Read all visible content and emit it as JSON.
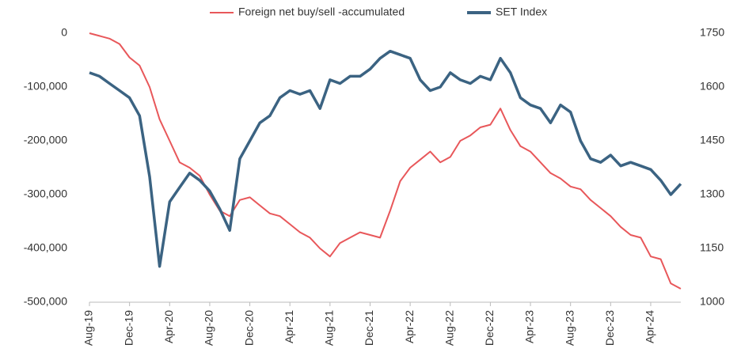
{
  "chart_data": {
    "type": "line",
    "categories": [
      "Aug-19",
      null,
      null,
      null,
      "Dec-19",
      null,
      null,
      null,
      "Apr-20",
      null,
      null,
      null,
      "Aug-20",
      null,
      null,
      null,
      "Dec-20",
      null,
      null,
      null,
      "Apr-21",
      null,
      null,
      null,
      "Aug-21",
      null,
      null,
      null,
      "Dec-21",
      null,
      null,
      null,
      "Apr-22",
      null,
      null,
      null,
      "Aug-22",
      null,
      null,
      null,
      "Dec-22",
      null,
      null,
      null,
      "Apr-23",
      null,
      null,
      null,
      "Aug-23",
      null,
      null,
      null,
      "Dec-23",
      null,
      null,
      null,
      "Apr-24",
      null,
      null,
      null
    ],
    "series": [
      {
        "name": "Foreign net buy/sell -accumulated",
        "color": "#e8575a",
        "axis": "y",
        "values": [
          0,
          -5000,
          -10000,
          -20000,
          -45000,
          -60000,
          -100000,
          -160000,
          -200000,
          -240000,
          -250000,
          -265000,
          -300000,
          -330000,
          -340000,
          -310000,
          -305000,
          -320000,
          -335000,
          -340000,
          -355000,
          -370000,
          -380000,
          -400000,
          -415000,
          -390000,
          -380000,
          -370000,
          -375000,
          -380000,
          -330000,
          -275000,
          -250000,
          -235000,
          -220000,
          -240000,
          -230000,
          -200000,
          -190000,
          -175000,
          -170000,
          -140000,
          -180000,
          -210000,
          -220000,
          -240000,
          -260000,
          -270000,
          -285000,
          -290000,
          -310000,
          -325000,
          -340000,
          -360000,
          -375000,
          -380000,
          -415000,
          -420000,
          -465000,
          -475000
        ]
      },
      {
        "name": "SET Index",
        "color": "#3b6382",
        "axis": "y2",
        "values": [
          1640,
          1630,
          1610,
          1590,
          1570,
          1520,
          1350,
          1100,
          1280,
          1320,
          1360,
          1340,
          1310,
          1260,
          1200,
          1400,
          1450,
          1500,
          1520,
          1570,
          1590,
          1580,
          1590,
          1540,
          1620,
          1610,
          1630,
          1630,
          1650,
          1680,
          1700,
          1690,
          1680,
          1620,
          1590,
          1600,
          1640,
          1620,
          1610,
          1630,
          1620,
          1680,
          1640,
          1570,
          1550,
          1540,
          1500,
          1550,
          1530,
          1450,
          1400,
          1390,
          1410,
          1380,
          1390,
          1380,
          1370,
          1340,
          1300,
          1330
        ]
      }
    ],
    "ylim": [
      -500000,
      0
    ],
    "yticks": [
      {
        "value": 0,
        "label": "0"
      },
      {
        "value": -100000,
        "label": "-100,000"
      },
      {
        "value": -200000,
        "label": "-200,000"
      },
      {
        "value": -300000,
        "label": "-300,000"
      },
      {
        "value": -400000,
        "label": "-400,000"
      },
      {
        "value": -500000,
        "label": "-500,000"
      }
    ],
    "y2lim": [
      1000,
      1750
    ],
    "y2ticks": [
      1000,
      1150,
      1300,
      1450,
      1600,
      1750
    ],
    "legend": "top",
    "grid": false
  }
}
